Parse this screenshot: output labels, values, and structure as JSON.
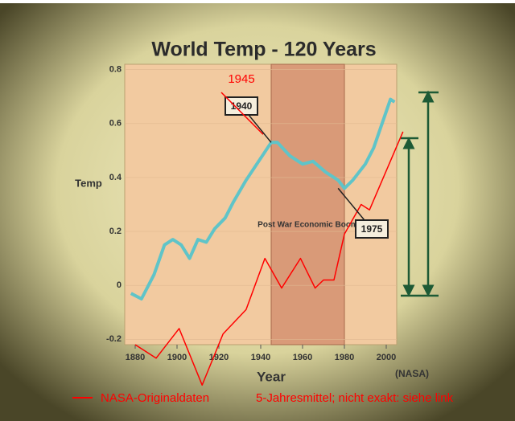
{
  "chart_data": {
    "type": "line",
    "title": "World Temp - 120 Years",
    "y_label": "Temp",
    "x_label": "Year",
    "source": "(NASA)",
    "xlim": [
      1875,
      2005
    ],
    "xticks": [
      1880,
      1900,
      1920,
      1940,
      1960,
      1980,
      2000
    ],
    "ylim": [
      -0.22,
      0.82
    ],
    "yticks": [
      0.8,
      0.6,
      0.4,
      0.2,
      0,
      -0.2
    ],
    "highlight": {
      "from": 1945,
      "to": 1980,
      "label": "Post War Economic Boom"
    },
    "annotations": [
      {
        "text": "1940",
        "x": 1945,
        "y": 0.53
      },
      {
        "text": "1975",
        "x": 1977,
        "y": 0.36
      },
      {
        "text": "1945",
        "x": 1945,
        "y": 0.56
      }
    ],
    "series": [
      {
        "color": "#5fc4c8",
        "x": [
          1878,
          1883,
          1889,
          1894,
          1898,
          1902,
          1906,
          1910,
          1914,
          1918,
          1923,
          1927,
          1933,
          1939,
          1945,
          1948,
          1954,
          1960,
          1965,
          1971,
          1977,
          1980,
          1984,
          1990,
          1994,
          1998,
          2002,
          2004
        ],
        "values": [
          -0.03,
          -0.05,
          0.04,
          0.15,
          0.17,
          0.15,
          0.1,
          0.17,
          0.16,
          0.21,
          0.25,
          0.31,
          0.39,
          0.46,
          0.53,
          0.53,
          0.48,
          0.45,
          0.46,
          0.42,
          0.39,
          0.36,
          0.39,
          0.45,
          0.51,
          0.6,
          0.69,
          0.68
        ]
      },
      {
        "name": "NASA-Originaldaten",
        "color": "#ff0000",
        "x": [
          1880,
          1890,
          1901,
          1912,
          1922,
          1933,
          1942,
          1950,
          1959,
          1966,
          1970,
          1975,
          1980,
          1988,
          1992,
          2008
        ],
        "values": [
          -0.22,
          -0.27,
          -0.16,
          -0.37,
          -0.18,
          -0.09,
          0.1,
          -0.01,
          0.1,
          -0.01,
          0.02,
          0.02,
          0.19,
          0.3,
          0.28,
          0.57
        ]
      }
    ],
    "note": "5-Jahresmittel; nicht exakt: siehe link"
  }
}
